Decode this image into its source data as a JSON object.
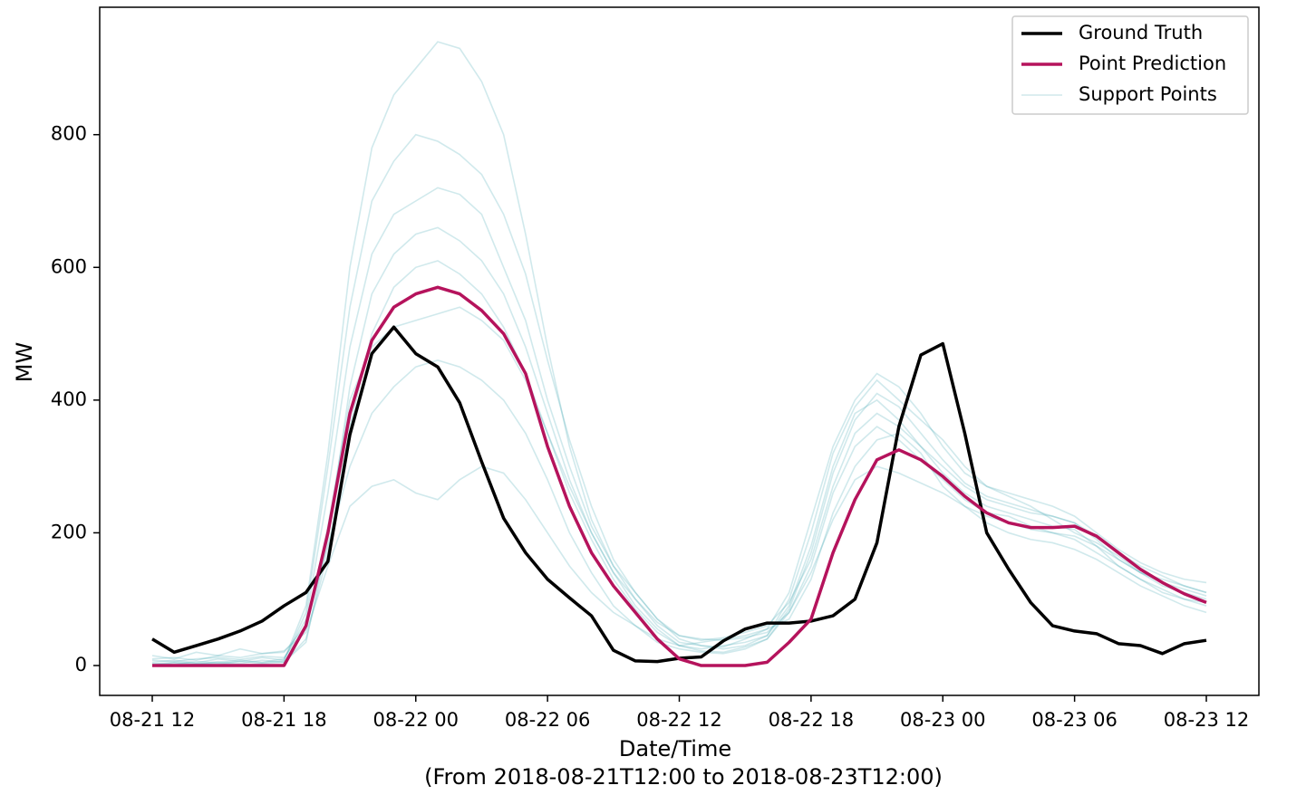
{
  "chart_data": {
    "type": "line",
    "xlabel": "Date/Time",
    "xlabel_sub": "(From 2018-08-21T12:00 to 2018-08-23T12:00)",
    "ylabel": "MW",
    "x": [
      "08-21 12",
      "08-21 13",
      "08-21 14",
      "08-21 15",
      "08-21 16",
      "08-21 17",
      "08-21 18",
      "08-21 19",
      "08-21 20",
      "08-21 21",
      "08-21 22",
      "08-21 23",
      "08-22 00",
      "08-22 01",
      "08-22 02",
      "08-22 03",
      "08-22 04",
      "08-22 05",
      "08-22 06",
      "08-22 07",
      "08-22 08",
      "08-22 09",
      "08-22 10",
      "08-22 11",
      "08-22 12",
      "08-22 13",
      "08-22 14",
      "08-22 15",
      "08-22 16",
      "08-22 17",
      "08-22 18",
      "08-22 19",
      "08-22 20",
      "08-22 21",
      "08-22 22",
      "08-22 23",
      "08-23 00",
      "08-23 01",
      "08-23 02",
      "08-23 03",
      "08-23 04",
      "08-23 05",
      "08-23 06",
      "08-23 07",
      "08-23 08",
      "08-23 09",
      "08-23 10",
      "08-23 11",
      "08-23 12"
    ],
    "xticks": [
      "08-21 12",
      "08-21 18",
      "08-22 00",
      "08-22 06",
      "08-22 12",
      "08-22 18",
      "08-23 00",
      "08-23 06",
      "08-23 12"
    ],
    "ylim": [
      -45,
      992
    ],
    "yticks": [
      0,
      200,
      400,
      600,
      800
    ],
    "legend": "upper right",
    "series": [
      {
        "name": "Ground Truth",
        "color": "#000000",
        "values": [
          40,
          20,
          30,
          40,
          52,
          67,
          90,
          110,
          157,
          348,
          470,
          510,
          470,
          450,
          396,
          307,
          222,
          170,
          130,
          102,
          75,
          23,
          7,
          6,
          11,
          13,
          37,
          55,
          64,
          64,
          67,
          75,
          100,
          185,
          360,
          468,
          485,
          350,
          200,
          145,
          95,
          60,
          52,
          48,
          33,
          30,
          18,
          33,
          38
        ]
      },
      {
        "name": "Point Prediction",
        "color": "#b5135c",
        "values": [
          0,
          0,
          0,
          0,
          0,
          0,
          0,
          60,
          200,
          380,
          490,
          540,
          560,
          570,
          560,
          535,
          500,
          440,
          330,
          240,
          170,
          120,
          80,
          40,
          10,
          0,
          0,
          0,
          5,
          35,
          70,
          170,
          250,
          310,
          325,
          310,
          285,
          255,
          230,
          215,
          208,
          208,
          210,
          195,
          170,
          145,
          125,
          108,
          95
        ]
      },
      {
        "name": "Support Points",
        "color": "#2a9aa8",
        "samples": [
          [
            5,
            8,
            4,
            10,
            6,
            12,
            8,
            90,
            320,
            600,
            780,
            860,
            900,
            940,
            930,
            880,
            800,
            650,
            480,
            330,
            220,
            150,
            100,
            60,
            35,
            30,
            28,
            40,
            55,
            110,
            220,
            330,
            400,
            440,
            420,
            380,
            330,
            290,
            270,
            255,
            240,
            220,
            200,
            185,
            165,
            140,
            130,
            120,
            110
          ],
          [
            3,
            2,
            6,
            4,
            8,
            5,
            10,
            70,
            260,
            480,
            620,
            680,
            700,
            720,
            710,
            680,
            600,
            520,
            400,
            300,
            210,
            150,
            110,
            70,
            45,
            38,
            42,
            50,
            60,
            95,
            160,
            270,
            350,
            380,
            360,
            330,
            300,
            270,
            250,
            240,
            230,
            225,
            215,
            190,
            160,
            140,
            120,
            110,
            100
          ],
          [
            10,
            12,
            8,
            15,
            12,
            18,
            20,
            60,
            180,
            300,
            380,
            420,
            450,
            460,
            450,
            430,
            400,
            350,
            280,
            200,
            140,
            90,
            60,
            35,
            25,
            20,
            18,
            25,
            40,
            80,
            150,
            260,
            330,
            360,
            340,
            310,
            280,
            250,
            230,
            225,
            210,
            200,
            190,
            170,
            150,
            130,
            115,
            100,
            90
          ],
          [
            0,
            4,
            2,
            6,
            3,
            8,
            5,
            40,
            170,
            360,
            500,
            570,
            600,
            610,
            590,
            560,
            510,
            440,
            350,
            260,
            190,
            130,
            85,
            50,
            30,
            25,
            30,
            35,
            45,
            90,
            180,
            300,
            380,
            400,
            370,
            330,
            290,
            260,
            240,
            230,
            220,
            210,
            205,
            180,
            150,
            130,
            110,
            100,
            95
          ],
          [
            15,
            10,
            20,
            15,
            25,
            18,
            22,
            50,
            150,
            240,
            270,
            280,
            260,
            250,
            280,
            300,
            290,
            250,
            200,
            150,
            110,
            80,
            60,
            40,
            30,
            35,
            40,
            45,
            55,
            70,
            130,
            230,
            300,
            340,
            350,
            320,
            270,
            240,
            215,
            200,
            190,
            185,
            175,
            160,
            140,
            120,
            105,
            90,
            80
          ],
          [
            2,
            5,
            3,
            2,
            6,
            4,
            7,
            80,
            300,
            540,
            700,
            760,
            800,
            790,
            770,
            740,
            680,
            590,
            460,
            340,
            240,
            160,
            110,
            70,
            40,
            30,
            25,
            30,
            45,
            100,
            200,
            320,
            390,
            430,
            400,
            370,
            340,
            300,
            270,
            260,
            250,
            240,
            225,
            200,
            175,
            155,
            140,
            130,
            125
          ],
          [
            8,
            6,
            10,
            12,
            9,
            14,
            12,
            55,
            210,
            400,
            480,
            510,
            520,
            530,
            540,
            520,
            490,
            430,
            350,
            270,
            200,
            140,
            100,
            65,
            45,
            40,
            38,
            42,
            50,
            80,
            140,
            220,
            280,
            300,
            290,
            275,
            260,
            240,
            225,
            215,
            205,
            200,
            195,
            180,
            160,
            140,
            125,
            115,
            105
          ],
          [
            0,
            0,
            2,
            4,
            1,
            3,
            5,
            35,
            190,
            420,
            560,
            620,
            650,
            660,
            640,
            610,
            560,
            480,
            380,
            280,
            200,
            140,
            90,
            55,
            30,
            22,
            20,
            28,
            40,
            85,
            170,
            290,
            370,
            410,
            390,
            350,
            310,
            275,
            255,
            245,
            235,
            225,
            215,
            195,
            170,
            150,
            135,
            120,
            110
          ]
        ]
      }
    ]
  }
}
